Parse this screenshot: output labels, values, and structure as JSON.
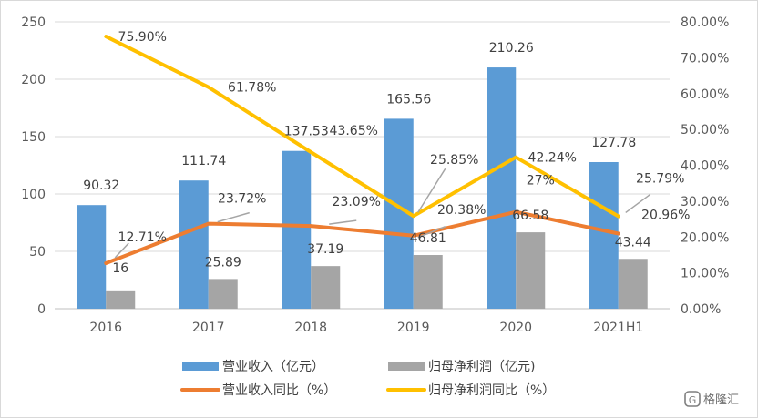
{
  "chart_data": {
    "type": "bar",
    "categories": [
      "2016",
      "2017",
      "2018",
      "2019",
      "2020",
      "2021H1"
    ],
    "series": [
      {
        "name": "营业收入（亿元）",
        "type": "bar",
        "axis": "left",
        "color": "#5b9bd5",
        "values": [
          90.32,
          111.74,
          137.53,
          165.56,
          210.26,
          127.78
        ],
        "labels": [
          "90.32",
          "111.74",
          "137.53",
          "165.56",
          "210.26",
          "127.78"
        ]
      },
      {
        "name": "归母净利润（亿元)",
        "type": "bar",
        "axis": "left",
        "color": "#a5a5a5",
        "values": [
          16,
          25.89,
          37.19,
          46.81,
          66.58,
          43.44
        ],
        "labels": [
          "16",
          "25.89",
          "37.19",
          "46.81",
          "66.58",
          "43.44"
        ]
      },
      {
        "name": "营业收入同比（%）",
        "type": "line",
        "axis": "right",
        "color": "#ed7d31",
        "values": [
          12.71,
          23.72,
          23.09,
          20.38,
          27,
          20.96
        ],
        "labels": [
          "12.71%",
          "23.72%",
          "23.09%",
          "20.38%",
          "27%",
          "20.96%"
        ]
      },
      {
        "name": "归母净利润同比（%）",
        "type": "line",
        "axis": "right",
        "color": "#ffc000",
        "values": [
          75.9,
          61.78,
          43.65,
          25.85,
          42.24,
          25.79
        ],
        "labels": [
          "75.90%",
          "61.78%",
          "43.65%",
          "25.85%",
          "42.24%",
          "25.79%"
        ]
      }
    ],
    "y_left": {
      "min": 0,
      "max": 250,
      "ticks": [
        "0",
        "50",
        "100",
        "150",
        "200",
        "250"
      ]
    },
    "y_right": {
      "min": 0,
      "max": 80,
      "ticks": [
        "0.00%",
        "10.00%",
        "20.00%",
        "30.00%",
        "40.00%",
        "50.00%",
        "60.00%",
        "70.00%",
        "80.00%"
      ]
    },
    "grid": "horizontal",
    "legend_position": "bottom"
  },
  "watermark": {
    "text": "格隆汇",
    "icon": "g-logo-icon"
  }
}
